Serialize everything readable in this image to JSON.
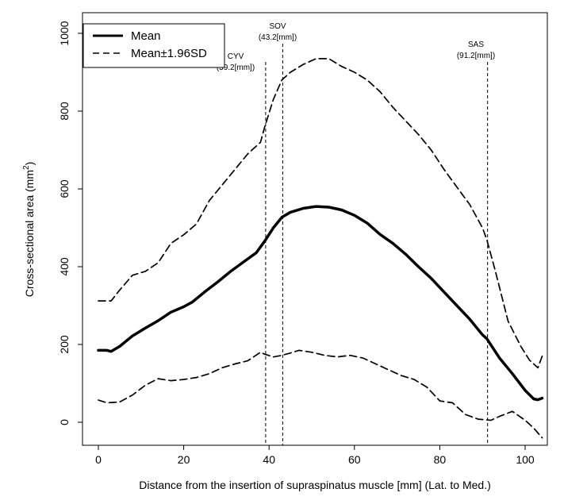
{
  "chart_data": {
    "type": "line",
    "title": "",
    "xlabel": "Distance from the insertion of supraspinatus muscle [mm] (Lat. to Med.)",
    "ylabel_main": "Cross-sectional area (mm",
    "ylabel_sup": "2",
    "ylabel_end": ")",
    "xlim": [
      -4,
      108
    ],
    "ylim": [
      -15,
      1030
    ],
    "xticks": [
      0,
      20,
      40,
      60,
      80,
      100
    ],
    "yticks": [
      0,
      200,
      400,
      600,
      800,
      1000
    ],
    "grid": false,
    "legend": {
      "placement": "top-left",
      "entries": [
        {
          "label": "Mean",
          "style": "solid"
        },
        {
          "label": "Mean±1.96SD",
          "style": "dashed"
        }
      ]
    },
    "annotations": [
      {
        "name": "CYV",
        "line1": "CYV",
        "line2": "(39.2[mm])",
        "x": 39.2
      },
      {
        "name": "SOV",
        "line1": "SOV",
        "line2": "(43.2[mm])",
        "x": 43.2
      },
      {
        "name": "SAS",
        "line1": "SAS",
        "line2": "(91.2[mm])",
        "x": 91.2
      }
    ],
    "series": [
      {
        "name": "Mean",
        "style": "solid",
        "x": [
          0,
          2,
          3,
          5,
          8,
          11,
          14,
          17,
          20,
          22,
          25,
          28,
          31,
          34,
          37,
          39,
          41,
          43,
          45,
          48,
          51,
          54,
          57,
          60,
          63,
          66,
          69,
          72,
          75,
          78,
          81,
          84,
          87,
          90,
          91,
          94,
          97,
          100,
          102,
          103,
          104
        ],
        "y": [
          185,
          185,
          182,
          195,
          222,
          242,
          261,
          283,
          297,
          309,
          336,
          361,
          388,
          412,
          436,
          466,
          500,
          527,
          540,
          550,
          555,
          553,
          546,
          532,
          512,
          483,
          460,
          432,
          400,
          370,
          335,
          300,
          265,
          225,
          215,
          165,
          125,
          82,
          60,
          58,
          62
        ]
      },
      {
        "name": "Mean+1.96SD",
        "style": "dashed",
        "x": [
          0,
          3,
          5,
          8,
          11,
          14,
          17,
          20,
          23,
          26,
          29,
          32,
          35,
          38,
          39,
          41,
          43,
          45,
          48,
          51,
          54,
          57,
          60,
          63,
          66,
          69,
          72,
          75,
          78,
          81,
          84,
          87,
          90,
          91,
          93,
          96,
          99,
          101,
          103,
          104
        ],
        "y": [
          312,
          312,
          340,
          378,
          388,
          410,
          460,
          482,
          510,
          570,
          610,
          650,
          690,
          720,
          760,
          830,
          880,
          900,
          920,
          935,
          935,
          915,
          900,
          880,
          850,
          810,
          775,
          740,
          700,
          650,
          605,
          560,
          500,
          470,
          390,
          260,
          195,
          160,
          140,
          170
        ]
      },
      {
        "name": "Mean-1.96SD",
        "style": "dashed",
        "x": [
          0,
          2,
          5,
          8,
          11,
          14,
          17,
          20,
          23,
          26,
          29,
          32,
          35,
          38,
          39,
          41,
          43,
          45,
          47,
          50,
          53,
          56,
          59,
          62,
          65,
          68,
          71,
          74,
          77,
          80,
          83,
          86,
          89,
          92,
          94,
          97,
          100,
          102,
          104
        ],
        "y": [
          57,
          50,
          52,
          70,
          95,
          112,
          107,
          110,
          115,
          125,
          140,
          150,
          158,
          180,
          175,
          168,
          172,
          178,
          185,
          180,
          172,
          168,
          172,
          165,
          150,
          135,
          120,
          110,
          90,
          55,
          50,
          20,
          8,
          5,
          15,
          28,
          5,
          -15,
          -40
        ]
      }
    ]
  }
}
